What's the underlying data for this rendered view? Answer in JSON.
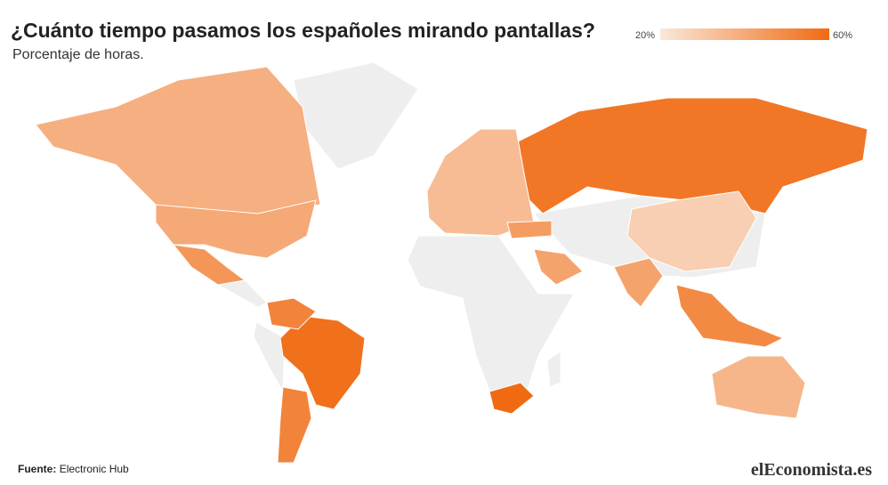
{
  "chart_data": {
    "type": "choropleth",
    "title": "¿Cuánto tiempo pasamos los españoles mirando pantallas?",
    "subtitle": "Porcentaje de horas.",
    "colorscale": [
      "#fae8da",
      "#f06a12"
    ],
    "clim": [
      20,
      60
    ],
    "cticks": [
      {
        "value": 20,
        "label": "20%"
      },
      {
        "value": 60,
        "label": "60%"
      }
    ],
    "values": [
      38,
      40,
      46,
      58,
      52,
      52,
      56,
      34,
      28,
      42,
      42,
      36,
      60,
      50,
      44
    ],
    "source_label": "Fuente:",
    "source": "Electronic Hub",
    "logo": "elEconomista.es"
  }
}
